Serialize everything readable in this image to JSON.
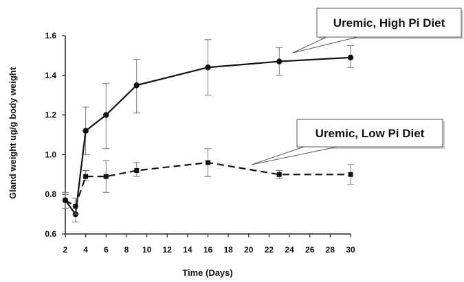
{
  "chart_data": {
    "type": "line",
    "title": "",
    "xlabel": "Time (Days)",
    "ylabel": "Gland weight ug/g body weight",
    "xlim": [
      2,
      30
    ],
    "ylim": [
      0.6,
      1.6
    ],
    "xticks": [
      2,
      4,
      6,
      8,
      10,
      12,
      14,
      16,
      18,
      20,
      22,
      24,
      26,
      28,
      30
    ],
    "yticks": [
      0.6,
      0.8,
      1.0,
      1.2,
      1.4,
      1.6
    ],
    "xtick_labels": [
      "2",
      "4",
      "6",
      "8",
      "10",
      "12",
      "14",
      "16",
      "18",
      "20",
      "22",
      "24",
      "26",
      "28",
      "30"
    ],
    "ytick_labels": [
      "0.6",
      "0.8",
      "1.0",
      "1.2",
      "1.4",
      "1.6"
    ],
    "grid": false,
    "series": [
      {
        "name": "Uremic, High Pi Diet",
        "line_style": "solid",
        "marker": "circle",
        "color": "#111111",
        "points": [
          {
            "x": 2,
            "y": 0.77,
            "err_low": 0.73,
            "err_high": 0.81
          },
          {
            "x": 3,
            "y": 0.7,
            "err_low": 0.66,
            "err_high": 0.74
          },
          {
            "x": 4,
            "y": 1.12,
            "err_low": 1.0,
            "err_high": 1.24
          },
          {
            "x": 6,
            "y": 1.2,
            "err_low": 1.03,
            "err_high": 1.36
          },
          {
            "x": 9,
            "y": 1.35,
            "err_low": 1.21,
            "err_high": 1.48
          },
          {
            "x": 16,
            "y": 1.44,
            "err_low": 1.3,
            "err_high": 1.58
          },
          {
            "x": 23,
            "y": 1.47,
            "err_low": 1.4,
            "err_high": 1.54
          },
          {
            "x": 30,
            "y": 1.49,
            "err_low": 1.44,
            "err_high": 1.55
          }
        ]
      },
      {
        "name": "Uremic, Low Pi Diet",
        "line_style": "dashed",
        "marker": "square",
        "color": "#111111",
        "points": [
          {
            "x": 2,
            "y": 0.77,
            "err_low": 0.73,
            "err_high": 0.8
          },
          {
            "x": 3,
            "y": 0.74,
            "err_low": 0.7,
            "err_high": 0.78
          },
          {
            "x": 4,
            "y": 0.89,
            "err_low": 0.87,
            "err_high": 0.92
          },
          {
            "x": 6,
            "y": 0.89,
            "err_low": 0.81,
            "err_high": 0.97
          },
          {
            "x": 9,
            "y": 0.92,
            "err_low": 0.89,
            "err_high": 0.96
          },
          {
            "x": 16,
            "y": 0.96,
            "err_low": 0.89,
            "err_high": 1.03
          },
          {
            "x": 23,
            "y": 0.9,
            "err_low": 0.88,
            "err_high": 0.92
          },
          {
            "x": 30,
            "y": 0.9,
            "err_low": 0.85,
            "err_high": 0.95
          }
        ]
      }
    ],
    "annotations": [
      {
        "text": "Uremic, High Pi Diet",
        "series_index": 0
      },
      {
        "text": "Uremic, Low Pi Diet",
        "series_index": 1
      }
    ]
  }
}
